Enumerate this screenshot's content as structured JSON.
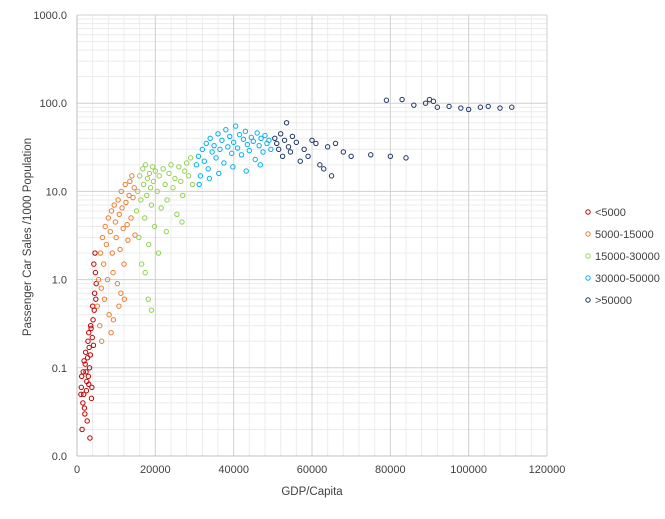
{
  "chart_data": {
    "type": "scatter",
    "title": "",
    "xlabel": "GDP/Capita",
    "ylabel": "Passenger Car Sales /1000 Population",
    "x_scale": "linear",
    "y_scale": "log",
    "xlim": [
      0,
      120000
    ],
    "ylim": [
      0.01,
      1000
    ],
    "x_ticks": [
      {
        "value": 0,
        "label": "0"
      },
      {
        "value": 20000,
        "label": "20000"
      },
      {
        "value": 40000,
        "label": "40000"
      },
      {
        "value": 60000,
        "label": "60000"
      },
      {
        "value": 80000,
        "label": "80000"
      },
      {
        "value": 100000,
        "label": "100000"
      },
      {
        "value": 120000,
        "label": "120000"
      }
    ],
    "y_ticks": [
      {
        "value": 0.01,
        "label": "0.0"
      },
      {
        "value": 0.1,
        "label": "0.1"
      },
      {
        "value": 1,
        "label": "1.0"
      },
      {
        "value": 10,
        "label": "10.0"
      },
      {
        "value": 100,
        "label": "100.0"
      },
      {
        "value": 1000,
        "label": "1000.0"
      }
    ],
    "grid": true,
    "legend_position": "right",
    "series": [
      {
        "name": "<5000",
        "color": "#c00000",
        "points": [
          [
            1000,
            0.05
          ],
          [
            1200,
            0.08
          ],
          [
            1500,
            0.04
          ],
          [
            1800,
            0.12
          ],
          [
            2000,
            0.03
          ],
          [
            2200,
            0.15
          ],
          [
            2500,
            0.07
          ],
          [
            2800,
            0.2
          ],
          [
            3000,
            0.25
          ],
          [
            3200,
            0.1
          ],
          [
            3500,
            0.3
          ],
          [
            3800,
            0.06
          ],
          [
            4000,
            0.5
          ],
          [
            4200,
            0.18
          ],
          [
            4500,
            0.7
          ],
          [
            4700,
            1.2
          ],
          [
            4900,
            0.9
          ],
          [
            1300,
            0.02
          ],
          [
            2600,
            0.025
          ],
          [
            3300,
            0.016
          ],
          [
            3700,
            0.045
          ],
          [
            4100,
            0.35
          ],
          [
            4300,
            1.5
          ],
          [
            4600,
            2.0
          ],
          [
            4800,
            0.6
          ],
          [
            1600,
            0.09
          ],
          [
            2100,
            0.11
          ],
          [
            2900,
            0.08
          ],
          [
            3400,
            0.14
          ],
          [
            3900,
            0.22
          ],
          [
            1100,
            0.06
          ],
          [
            1700,
            0.05
          ],
          [
            2300,
            0.09
          ],
          [
            2700,
            0.13
          ],
          [
            3100,
            0.17
          ],
          [
            3600,
            0.28
          ],
          [
            4400,
            0.45
          ],
          [
            1900,
            0.035
          ],
          [
            2400,
            0.055
          ],
          [
            3000,
            0.065
          ]
        ]
      },
      {
        "name": "5000-15000",
        "color": "#ed7d31",
        "points": [
          [
            5200,
            0.5
          ],
          [
            5500,
            1.0
          ],
          [
            5800,
            0.3
          ],
          [
            6000,
            2.0
          ],
          [
            6200,
            0.8
          ],
          [
            6500,
            3.0
          ],
          [
            6800,
            1.5
          ],
          [
            7000,
            0.6
          ],
          [
            7200,
            4.0
          ],
          [
            7500,
            2.5
          ],
          [
            7800,
            1.0
          ],
          [
            8000,
            5.0
          ],
          [
            8200,
            0.4
          ],
          [
            8500,
            3.5
          ],
          [
            8800,
            6.0
          ],
          [
            9000,
            2.0
          ],
          [
            9200,
            1.2
          ],
          [
            9500,
            7.0
          ],
          [
            9800,
            4.5
          ],
          [
            10000,
            3.0
          ],
          [
            10300,
            0.9
          ],
          [
            10500,
            8.0
          ],
          [
            10800,
            5.5
          ],
          [
            11000,
            2.2
          ],
          [
            11300,
            10.0
          ],
          [
            11500,
            6.5
          ],
          [
            11800,
            3.8
          ],
          [
            12000,
            1.5
          ],
          [
            12300,
            12.0
          ],
          [
            12500,
            7.5
          ],
          [
            12800,
            4.2
          ],
          [
            13000,
            2.8
          ],
          [
            13300,
            9.0
          ],
          [
            13500,
            13.0
          ],
          [
            13800,
            5.0
          ],
          [
            14000,
            15.0
          ],
          [
            14300,
            8.5
          ],
          [
            14600,
            11.0
          ],
          [
            14800,
            3.2
          ],
          [
            9300,
            0.35
          ],
          [
            10700,
            0.5
          ],
          [
            11200,
            0.7
          ],
          [
            6300,
            0.2
          ],
          [
            8700,
            0.25
          ],
          [
            12100,
            0.6
          ]
        ]
      },
      {
        "name": "15000-30000",
        "color": "#92d050",
        "points": [
          [
            15200,
            6.0
          ],
          [
            15500,
            10.0
          ],
          [
            15800,
            3.0
          ],
          [
            16000,
            15.0
          ],
          [
            16300,
            8.0
          ],
          [
            16500,
            1.5
          ],
          [
            16800,
            18.0
          ],
          [
            17000,
            12.0
          ],
          [
            17300,
            5.0
          ],
          [
            17500,
            20.0
          ],
          [
            17800,
            9.0
          ],
          [
            18000,
            14.0
          ],
          [
            18300,
            2.5
          ],
          [
            18500,
            16.0
          ],
          [
            18800,
            11.0
          ],
          [
            19000,
            7.0
          ],
          [
            19300,
            19.0
          ],
          [
            19500,
            13.0
          ],
          [
            19800,
            4.0
          ],
          [
            20000,
            17.0
          ],
          [
            20500,
            10.0
          ],
          [
            21000,
            15.0
          ],
          [
            21500,
            6.5
          ],
          [
            22000,
            18.0
          ],
          [
            22500,
            12.0
          ],
          [
            23000,
            8.0
          ],
          [
            23500,
            16.0
          ],
          [
            24000,
            20.0
          ],
          [
            24500,
            11.0
          ],
          [
            25000,
            14.0
          ],
          [
            25500,
            5.5
          ],
          [
            26000,
            19.0
          ],
          [
            26500,
            13.0
          ],
          [
            27000,
            9.0
          ],
          [
            27500,
            17.0
          ],
          [
            28000,
            21.0
          ],
          [
            28500,
            15.0
          ],
          [
            29000,
            24.0
          ],
          [
            29500,
            12.0
          ],
          [
            18200,
            0.6
          ],
          [
            19000,
            0.45
          ],
          [
            17400,
            1.2
          ],
          [
            20800,
            2.0
          ],
          [
            22800,
            3.5
          ],
          [
            26800,
            4.5
          ]
        ]
      },
      {
        "name": "30000-50000",
        "color": "#00b0f0",
        "points": [
          [
            30500,
            20.0
          ],
          [
            31000,
            25.0
          ],
          [
            31500,
            15.0
          ],
          [
            32000,
            30.0
          ],
          [
            32500,
            22.0
          ],
          [
            33000,
            35.0
          ],
          [
            33500,
            18.0
          ],
          [
            34000,
            40.0
          ],
          [
            34500,
            28.0
          ],
          [
            35000,
            33.0
          ],
          [
            35500,
            24.0
          ],
          [
            36000,
            45.0
          ],
          [
            36500,
            30.0
          ],
          [
            37000,
            38.0
          ],
          [
            37500,
            21.0
          ],
          [
            38000,
            50.0
          ],
          [
            38500,
            32.0
          ],
          [
            39000,
            42.0
          ],
          [
            39500,
            27.0
          ],
          [
            40000,
            36.0
          ],
          [
            40500,
            55.0
          ],
          [
            41000,
            31.0
          ],
          [
            41500,
            44.0
          ],
          [
            42000,
            26.0
          ],
          [
            42500,
            39.0
          ],
          [
            43000,
            48.0
          ],
          [
            43500,
            34.0
          ],
          [
            44000,
            29.0
          ],
          [
            44500,
            41.0
          ],
          [
            45000,
            37.0
          ],
          [
            45500,
            23.0
          ],
          [
            46000,
            46.0
          ],
          [
            46500,
            33.0
          ],
          [
            47000,
            40.0
          ],
          [
            47500,
            28.0
          ],
          [
            48000,
            43.0
          ],
          [
            48500,
            35.0
          ],
          [
            49000,
            38.0
          ],
          [
            49500,
            30.0
          ],
          [
            31200,
            12.0
          ],
          [
            33800,
            14.0
          ],
          [
            36200,
            16.0
          ],
          [
            39800,
            19.0
          ],
          [
            43200,
            17.0
          ],
          [
            46800,
            20.0
          ]
        ]
      },
      {
        "name": ">50000",
        "color": "#1f3864",
        "points": [
          [
            50500,
            40.0
          ],
          [
            51000,
            35.0
          ],
          [
            51500,
            30.0
          ],
          [
            52000,
            45.0
          ],
          [
            52500,
            25.0
          ],
          [
            53000,
            38.0
          ],
          [
            53500,
            60.0
          ],
          [
            54000,
            32.0
          ],
          [
            54500,
            28.0
          ],
          [
            55000,
            42.0
          ],
          [
            56000,
            36.0
          ],
          [
            57000,
            22.0
          ],
          [
            58000,
            30.0
          ],
          [
            59000,
            25.0
          ],
          [
            60000,
            38.0
          ],
          [
            61000,
            35.0
          ],
          [
            62000,
            20.0
          ],
          [
            63000,
            18.0
          ],
          [
            64000,
            32.0
          ],
          [
            65000,
            15.0
          ],
          [
            66000,
            35.0
          ],
          [
            68000,
            28.0
          ],
          [
            70000,
            25.0
          ],
          [
            75000,
            26.0
          ],
          [
            79000,
            108.0
          ],
          [
            80000,
            25.0
          ],
          [
            83000,
            110.0
          ],
          [
            84000,
            24.0
          ],
          [
            86000,
            95.0
          ],
          [
            89000,
            100.0
          ],
          [
            90000,
            110.0
          ],
          [
            91000,
            105.0
          ],
          [
            92000,
            90.0
          ],
          [
            95000,
            92.0
          ],
          [
            98000,
            88.0
          ],
          [
            100000,
            85.0
          ],
          [
            103000,
            90.0
          ],
          [
            105000,
            92.0
          ],
          [
            108000,
            88.0
          ],
          [
            111000,
            90.0
          ]
        ]
      }
    ]
  }
}
